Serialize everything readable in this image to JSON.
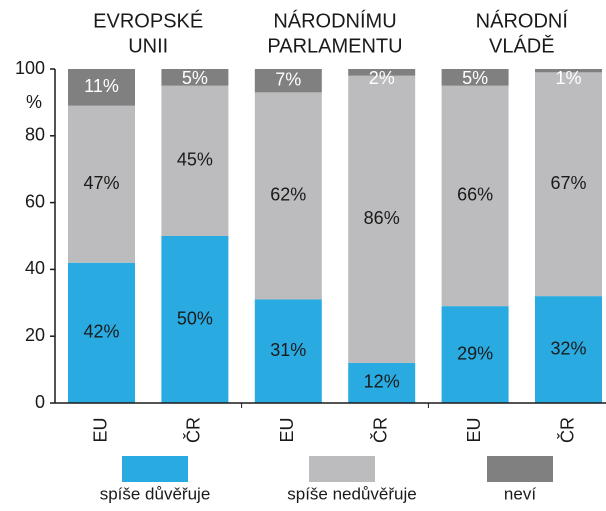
{
  "chart_data": {
    "type": "stacked_bar",
    "groups": [
      [
        "EVROPSKÉ",
        "UNII"
      ],
      [
        "NÁRODNÍMU",
        "PARLAMENTU"
      ],
      [
        "NÁRODNÍ",
        "VLÁDĚ"
      ]
    ],
    "categories": [
      "EU",
      "ČR",
      "EU",
      "ČR",
      "EU",
      "ČR"
    ],
    "ylabel": "%",
    "ylim": [
      0,
      100
    ],
    "yticks": [
      0,
      20,
      40,
      60,
      80,
      100
    ],
    "legend": "bottom",
    "series": [
      {
        "name": "spíše důvěřuje",
        "color": "#29abe2",
        "label_color": "#1a1a1a",
        "values": [
          42,
          50,
          31,
          12,
          29,
          32
        ],
        "value_labels": [
          "42%",
          "50%",
          "31%",
          "12%",
          "29%",
          "32%"
        ]
      },
      {
        "name": "spíše nedůvěřuje",
        "color": "#bcbcbe",
        "label_color": "#1a1a1a",
        "values": [
          47,
          45,
          62,
          86,
          66,
          67
        ],
        "value_labels": [
          "47%",
          "45%",
          "62%",
          "86%",
          "66%",
          "67%"
        ]
      },
      {
        "name": "neví",
        "color": "#808080",
        "label_color": "#ffffff",
        "values": [
          11,
          5,
          7,
          2,
          5,
          1
        ],
        "value_labels": [
          "11%",
          "5%",
          "7%",
          "2%",
          "5%",
          "1%"
        ]
      }
    ]
  }
}
